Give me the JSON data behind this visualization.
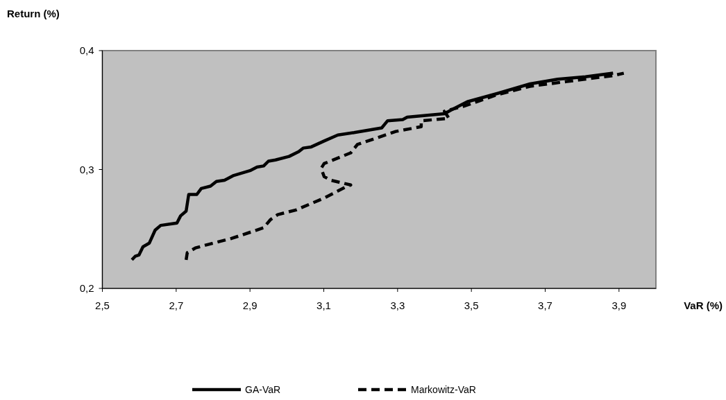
{
  "chart_data": {
    "type": "line",
    "xlabel": "VaR (%)",
    "ylabel": "Return (%)",
    "xlim": [
      2.5,
      4.0
    ],
    "xticks": [
      {
        "value": 2.5,
        "label": "2,5"
      },
      {
        "value": 2.7,
        "label": "2,7"
      },
      {
        "value": 2.9,
        "label": "2,9"
      },
      {
        "value": 3.1,
        "label": "3,1"
      },
      {
        "value": 3.3,
        "label": "3,3"
      },
      {
        "value": 3.5,
        "label": "3,5"
      },
      {
        "value": 3.7,
        "label": "3,7"
      },
      {
        "value": 3.9,
        "label": "3,9"
      }
    ],
    "ylim": [
      0.2,
      0.4
    ],
    "yticks": [
      {
        "value": 0.2,
        "label": "0,2"
      },
      {
        "value": 0.3,
        "label": "0,3"
      },
      {
        "value": 0.4,
        "label": "0,4"
      }
    ],
    "grid": false,
    "legend": "bottom",
    "marker": "none",
    "series": [
      {
        "name": "GA-VaR",
        "color": "#000000",
        "line_style": "solid",
        "x": [
          2.58,
          2.589,
          2.599,
          2.61,
          2.627,
          2.643,
          2.658,
          2.702,
          2.712,
          2.727,
          2.734,
          2.756,
          2.768,
          2.793,
          2.809,
          2.831,
          2.856,
          2.9,
          2.919,
          2.937,
          2.95,
          2.969,
          3.006,
          3.032,
          3.044,
          3.066,
          3.101,
          3.138,
          3.182,
          3.257,
          3.273,
          3.314,
          3.326,
          3.427,
          3.445,
          3.489,
          3.571,
          3.659,
          3.734,
          3.809,
          3.884
        ],
        "values": [
          0.224,
          0.227,
          0.228,
          0.235,
          0.238,
          0.249,
          0.253,
          0.255,
          0.261,
          0.265,
          0.279,
          0.279,
          0.284,
          0.286,
          0.29,
          0.291,
          0.295,
          0.299,
          0.302,
          0.303,
          0.307,
          0.308,
          0.311,
          0.315,
          0.318,
          0.319,
          0.324,
          0.329,
          0.331,
          0.335,
          0.341,
          0.342,
          0.344,
          0.347,
          0.35,
          0.357,
          0.364,
          0.372,
          0.376,
          0.378,
          0.381
        ]
      },
      {
        "name": "Markowitz-VaR",
        "color": "#000000",
        "line_style": "dashed",
        "x": [
          2.727,
          2.73,
          2.752,
          2.787,
          2.85,
          2.937,
          2.956,
          2.975,
          3.025,
          3.101,
          3.132,
          3.157,
          3.173,
          3.119,
          3.101,
          3.093,
          3.101,
          3.173,
          3.191,
          3.295,
          3.364,
          3.364,
          3.439,
          3.427,
          3.477,
          3.571,
          3.659,
          3.759,
          3.884,
          3.913
        ],
        "values": [
          0.224,
          0.23,
          0.234,
          0.237,
          0.242,
          0.251,
          0.258,
          0.262,
          0.266,
          0.276,
          0.281,
          0.285,
          0.287,
          0.291,
          0.294,
          0.301,
          0.305,
          0.314,
          0.321,
          0.332,
          0.336,
          0.341,
          0.343,
          0.349,
          0.353,
          0.363,
          0.37,
          0.374,
          0.379,
          0.381
        ]
      }
    ]
  }
}
